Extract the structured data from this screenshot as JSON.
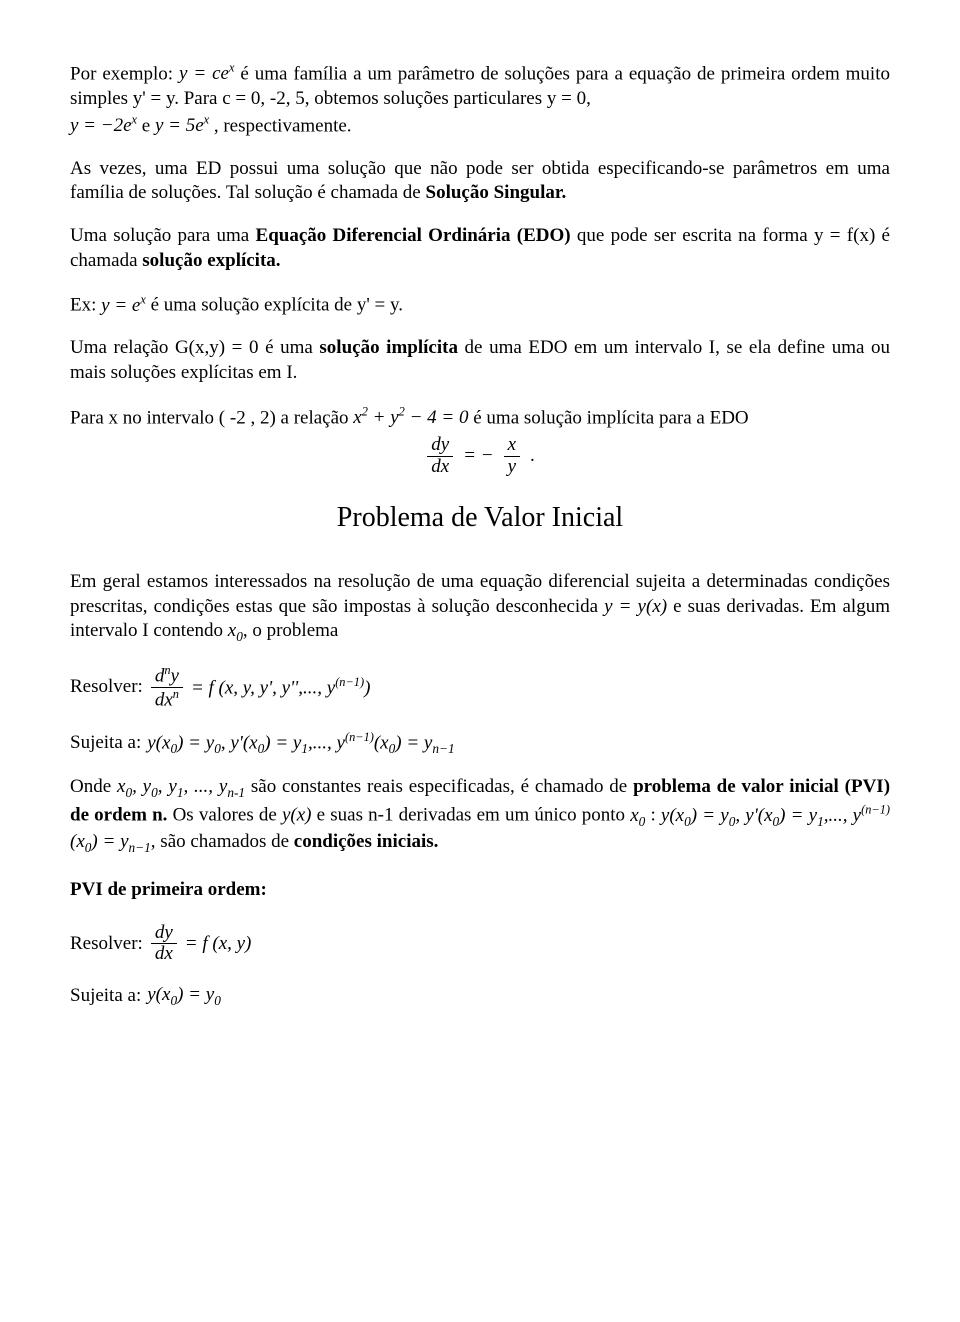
{
  "p1a": "Por exemplo: ",
  "p1b": " é uma família a um parâmetro de soluções para  a equação de primeira ordem muito simples y' = y. Para c = 0, -2, 5, obtemos soluções particulares  y = 0,",
  "p1c": ", respectivamente.",
  "eq_yce": "y = ce",
  "eq_m2e": "y = −2e",
  "eq_5e": "y = 5e",
  "eq_and": " e ",
  "sup_x": "x",
  "p2a": "As vezes, uma ED possui uma solução que não pode ser obtida especificando-se parâmetros em uma família de soluções. Tal solução é chamada de ",
  "p2b": "Solução Singular.",
  "p3a": "Uma solução para uma ",
  "p3b": "Equação Diferencial Ordinária (EDO)",
  "p3c": " que pode ser escrita na forma y = f(x) é chamada ",
  "p3d": "solução explícita.",
  "p4a": "Ex: ",
  "p4b": " é uma solução explícita de y' = y.",
  "eq_ye": "y = e",
  "p5": "Uma relação G(x,y) = 0 é uma ",
  "p5b": "solução implícita",
  "p5c": " de uma EDO em um intervalo I, se ela define uma ou mais soluções explícitas em I.",
  "p6a": "Para x no intervalo ( -2 , 2) a relação  ",
  "p6b": " é uma solução implícita para a EDO",
  "eq_circle_lhs": "x",
  "eq_circle_plus": " + y",
  "eq_circle_rhs": " − 4 = 0",
  "sup_2": "2",
  "eq_frac_dy": "dy",
  "eq_frac_dx": "dx",
  "eq_frac_x": "x",
  "eq_frac_y": "y",
  "eq_eq_neg": " = − ",
  "dot": ".",
  "h2": "Problema de Valor Inicial",
  "p7a": "Em geral estamos interessados na resolução de uma equação diferencial sujeita a determinadas condições prescritas, condições estas que são impostas à solução desconhecida ",
  "p7b": "y = y(x)",
  "p7c": " e suas derivadas. Em algum intervalo I contendo ",
  "p7d": "x",
  "p7e": ", o problema",
  "sub_0": "0",
  "resolver_label": "Resolver: ",
  "sujeita_label": "Sujeita a: ",
  "eq_dny_num": "d",
  "eq_dny_num2": "y",
  "eq_dny_den": "dx",
  "sup_n": "n",
  "eq_fxyy": " = f (x, y, y', y'',..., y",
  "sup_nm1": "(n−1)",
  "close_paren": ")",
  "eq_chain": "y(x",
  "eq_eq_y0": ") = y",
  "eq_y1x0": ", y'(x",
  "eq_y1": ") = y",
  "sub_1": "1",
  "eq_dots_y": ",..., y",
  "eq_last_x0": "(x",
  "eq_last_yn": ") = y",
  "sub_nm1": "n−1",
  "p8a": "Onde ",
  "p8b": "x",
  "p8c": ",  y",
  "p8d": ",  y",
  "p8e": ", ..., y",
  "p8f": " são constantes reais especificadas, é chamado de ",
  "p8g": "problema de valor inicial (PVI) de ordem n.",
  "p8h": " Os valores de ",
  "p8i": "y(x)",
  "p8j": " e suas n-1 derivadas em um único ponto ",
  "p8k": "x",
  "p8l": " : ",
  "p8m": ", são chamados de ",
  "p8n": "condições iniciais.",
  "sub_n_minus_1_plain": "n-1",
  "pvi1_title": "PVI de primeira ordem:",
  "eq_fxy": " = f (x, y)",
  "eq_simple_y": "y(x",
  "eq_simple_eq": ") = y"
}
